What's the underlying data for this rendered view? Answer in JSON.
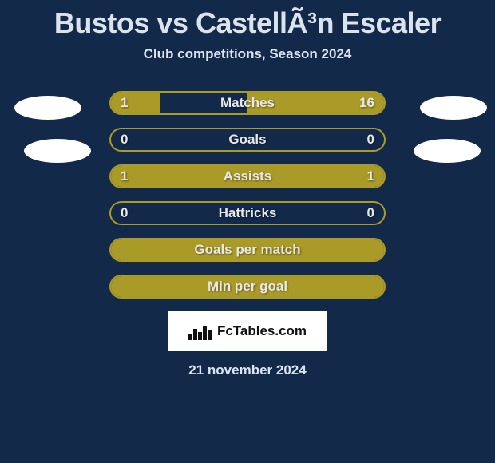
{
  "title": "Bustos vs CastellÃ³n Escaler",
  "subtitle": "Club competitions, Season 2024",
  "brand": "FcTables.com",
  "date": "21 november 2024",
  "colors": {
    "background": "#13294a",
    "bar_border": "#aa9a28",
    "bar_fill": "#aa9a28",
    "text": "#dbe4ed",
    "brand_bg": "#ffffff",
    "brand_text": "#111111"
  },
  "bars": [
    {
      "label": "Matches",
      "left": "1",
      "right": "16",
      "fill_left_pct": 18,
      "fill_right_pct": 50
    },
    {
      "label": "Goals",
      "left": "0",
      "right": "0",
      "fill_left_pct": 0,
      "fill_right_pct": 0
    },
    {
      "label": "Assists",
      "left": "1",
      "right": "1",
      "fill_left_pct": 50,
      "fill_right_pct": 50
    },
    {
      "label": "Hattricks",
      "left": "0",
      "right": "0",
      "fill_left_pct": 0,
      "fill_right_pct": 0
    },
    {
      "label": "Goals per match",
      "left": "",
      "right": "",
      "fill_left_pct": 100,
      "fill_right_pct": 0
    },
    {
      "label": "Min per goal",
      "left": "",
      "right": "",
      "fill_left_pct": 100,
      "fill_right_pct": 0
    }
  ],
  "avatars": {
    "left": {
      "top": true,
      "bottom": true
    },
    "right": {
      "top": true,
      "bottom": true
    }
  }
}
